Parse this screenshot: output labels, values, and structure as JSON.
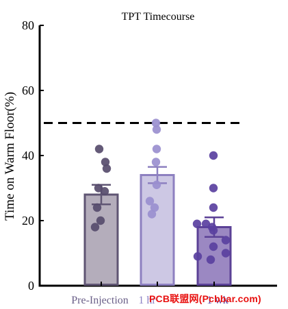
{
  "chart_data": {
    "type": "bar",
    "title": "TPT Timecourse",
    "xlabel": "",
    "ylabel": "Time on Warm Floor(%)",
    "ylim": [
      0,
      80
    ],
    "yticks": [
      "0",
      "20",
      "40",
      "60",
      "80"
    ],
    "categories": [
      "Pre-Injection",
      "1 hr",
      "1 wk"
    ],
    "values": [
      28,
      34,
      18
    ],
    "sem": [
      3,
      2.5,
      3
    ],
    "reference_line": 50,
    "bar_fill_colors": [
      "#b4adbb",
      "#cdc8e4",
      "#9b88c2"
    ],
    "bar_edge_colors": [
      "#5f5573",
      "#8d80c0",
      "#5b4196"
    ],
    "tick_label_colors": [
      "#6a5f88",
      "#8d82c6",
      "#5e45a3"
    ],
    "points": [
      [
        42,
        38,
        36,
        30,
        29,
        24,
        20,
        18
      ],
      [
        50,
        48,
        42,
        38,
        31,
        26,
        24,
        22
      ],
      [
        40,
        30,
        24,
        19,
        19,
        18,
        17,
        14,
        12,
        10,
        9,
        8
      ]
    ],
    "point_colors": [
      "#574c6c",
      "#9a8fcf",
      "#5a40a0"
    ],
    "grid": false
  },
  "watermark": "PCB联盟网(Pcbbar.com)"
}
